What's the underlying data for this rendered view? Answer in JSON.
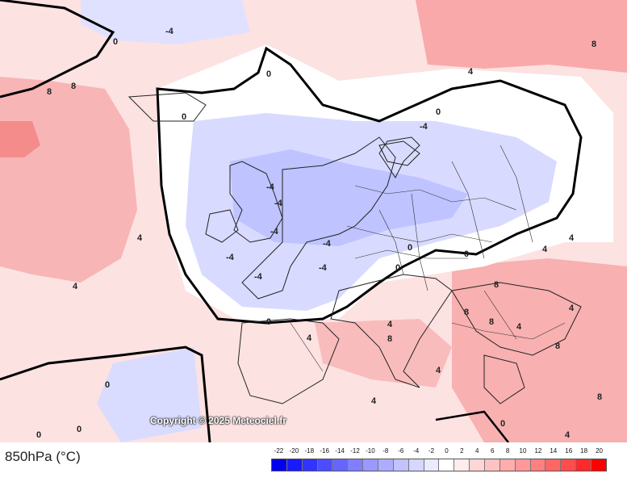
{
  "map": {
    "level_label": "850hPa (°C)",
    "copyright": "Copyright © 2025 Meteociel.fr",
    "contour_labels": [
      {
        "v": "8"
      },
      {
        "v": "0"
      },
      {
        "v": "-4"
      },
      {
        "v": "-4"
      },
      {
        "v": "0"
      },
      {
        "v": "0"
      },
      {
        "v": "0"
      },
      {
        "v": "-4"
      },
      {
        "v": "-4"
      },
      {
        "v": "-4"
      },
      {
        "v": "-4"
      },
      {
        "v": "-4"
      },
      {
        "v": "-4"
      },
      {
        "v": "-4"
      },
      {
        "v": "0"
      },
      {
        "v": "0"
      },
      {
        "v": "0"
      },
      {
        "v": "4"
      },
      {
        "v": "4"
      },
      {
        "v": "4"
      },
      {
        "v": "8"
      },
      {
        "v": "8"
      },
      {
        "v": "4"
      },
      {
        "v": "8"
      },
      {
        "v": "8"
      },
      {
        "v": "8"
      },
      {
        "v": "4"
      },
      {
        "v": "4"
      },
      {
        "v": "4"
      },
      {
        "v": "8"
      },
      {
        "v": "4"
      },
      {
        "v": "0"
      },
      {
        "v": "0"
      },
      {
        "v": "4"
      },
      {
        "v": "4"
      },
      {
        "v": "0"
      },
      {
        "v": "8"
      },
      {
        "v": "4"
      },
      {
        "v": "8"
      },
      {
        "v": "4"
      },
      {
        "v": "0"
      },
      {
        "v": "0"
      }
    ]
  },
  "legend": {
    "ticks": [
      "-22",
      "-20",
      "-18",
      "-16",
      "-14",
      "-12",
      "-10",
      "-8",
      "-6",
      "-4",
      "-2",
      "0",
      "2",
      "4",
      "6",
      "8",
      "10",
      "12",
      "14",
      "16",
      "18",
      "20"
    ],
    "colors": [
      "#0000ee",
      "#1a1aff",
      "#3333ff",
      "#4d4dff",
      "#6666ff",
      "#7f7fff",
      "#9999ff",
      "#adadff",
      "#c2c2ff",
      "#d6d6ff",
      "#ebebff",
      "#ffffff",
      "#ffecec",
      "#ffd6d6",
      "#ffc2c2",
      "#ffadad",
      "#ff9999",
      "#ff8080",
      "#ff6666",
      "#ff4d4d",
      "#ff2a2a",
      "#ff0000"
    ],
    "blue_accent": "#0000ee",
    "red_accent": "#ff0000"
  }
}
